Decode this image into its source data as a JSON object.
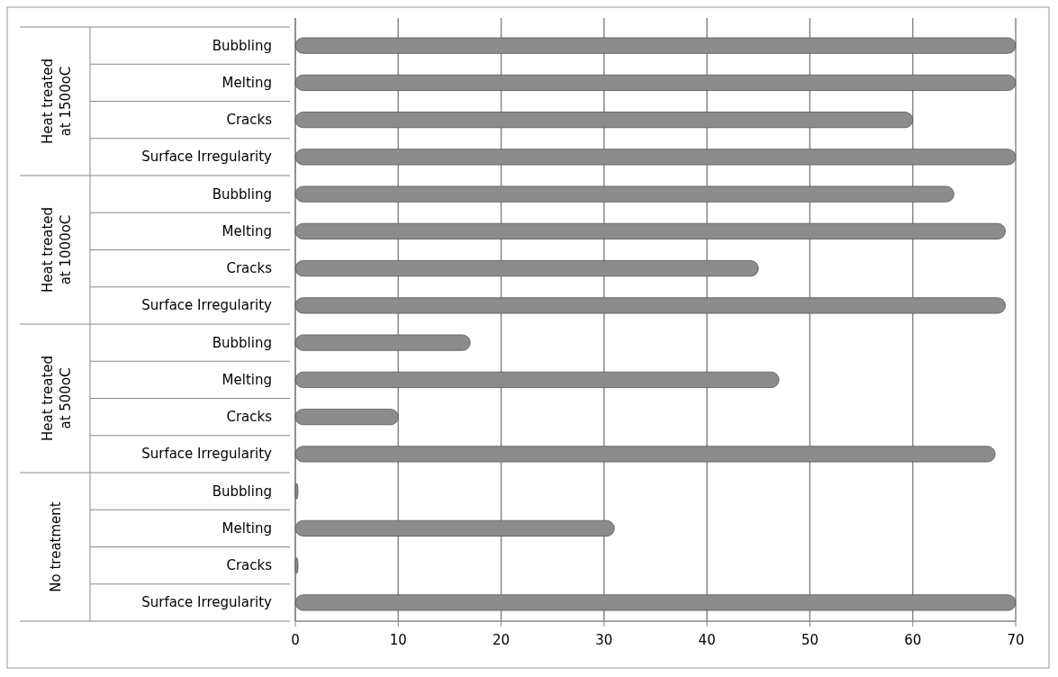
{
  "chart_data": {
    "type": "bar",
    "orientation": "horizontal",
    "categories": [
      "Bubbling",
      "Melting",
      "Cracks",
      "Surface Irregularity",
      "Bubbling",
      "Melting",
      "Cracks",
      "Surface Irregularity",
      "Bubbling",
      "Melting",
      "Cracks",
      "Surface Irregularity",
      "Bubbling",
      "Melting",
      "Cracks",
      "Surface Irregularity"
    ],
    "values": [
      70,
      70,
      60,
      70,
      64,
      69,
      45,
      69,
      17,
      47,
      10,
      68,
      0,
      31,
      0,
      70
    ],
    "color": "#8c8c8c",
    "xlim": [
      0,
      70
    ],
    "xticks": [
      0,
      10,
      20,
      30,
      40,
      50,
      60,
      70
    ],
    "grid": "x",
    "annotations": [
      "Heat treated at 1500oC",
      "Heat treated at 1000oC",
      "Heat treated at 500oC",
      "No treatment"
    ]
  }
}
